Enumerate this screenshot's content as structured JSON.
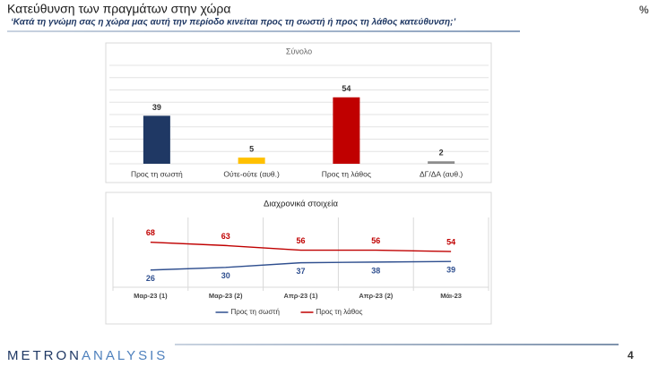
{
  "header": {
    "title": "Κατεύθυνση των πραγμάτων στην χώρα",
    "subtitle": "‘Κατά τη γνώμη σας η χώρα μας αυτή την περίοδο κινείται προς τη σωστή ή προς τη λάθος κατεύθυνση;’",
    "unit": "%"
  },
  "footer": {
    "logo_left": "METRON",
    "logo_right": "ANALYSIS",
    "page_number": "4"
  },
  "chart_data": [
    {
      "type": "bar",
      "title": "Σύνολο",
      "categories": [
        "Προς τη σωστή",
        "Ούτε-ούτε (αυθ.)",
        "Προς τη λάθος",
        "ΔΓ/ΔΑ (αυθ.)"
      ],
      "values": [
        39,
        5,
        54,
        2
      ],
      "colors": [
        "#1f3864",
        "#ffc000",
        "#c00000",
        "#8c8c8c"
      ],
      "ylim": [
        0,
        80
      ],
      "yticks": [
        0,
        10,
        20,
        30,
        40,
        50,
        60,
        70,
        80
      ],
      "grid": true
    },
    {
      "type": "line",
      "title": "Διαχρονικά στοιχεία",
      "categories": [
        "Μαρ-23 (1)",
        "Μαρ-23 (2)",
        "Απρ-23 (1)",
        "Απρ-23 (2)",
        "Μάι-23"
      ],
      "series": [
        {
          "name": "Προς τη σωστή",
          "color": "#2f4f8f",
          "values": [
            26,
            30,
            37,
            38,
            39
          ]
        },
        {
          "name": "Προς τη λάθος",
          "color": "#c00000",
          "values": [
            68,
            63,
            56,
            56,
            54
          ]
        }
      ],
      "ylim": [
        0,
        100
      ],
      "legend": "bottom"
    }
  ]
}
